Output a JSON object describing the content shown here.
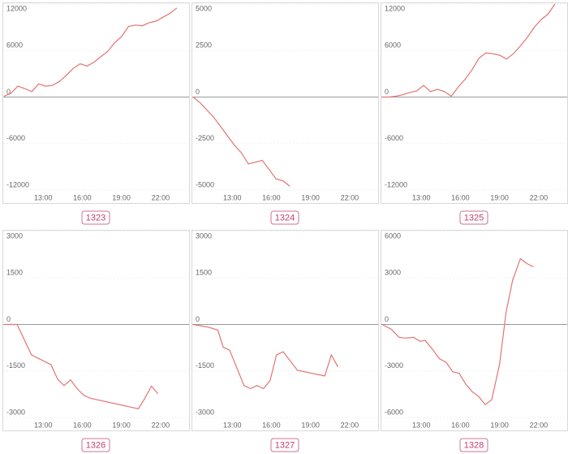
{
  "chart_data": [
    {
      "type": "line",
      "title": "1323",
      "color": "#e57373",
      "x": [
        10,
        10.53,
        11.06,
        11.59,
        12.12,
        12.65,
        13.18,
        13.71,
        14.24,
        14.77,
        15.3,
        15.83,
        16.36,
        16.89,
        17.42,
        17.95,
        18.48,
        19.01,
        19.54,
        20.07,
        20.6,
        21.13,
        21.66,
        22.19,
        22.72,
        23.25
      ],
      "values": [
        100,
        500,
        1400,
        1100,
        700,
        1700,
        1400,
        1500,
        2000,
        2800,
        3700,
        4300,
        4000,
        4500,
        5200,
        5900,
        7000,
        7800,
        9100,
        9300,
        9200,
        9600,
        9800,
        10300,
        10800,
        11500
      ],
      "xlim": [
        10,
        24.25
      ],
      "xticks": [
        {
          "value": 13,
          "label": "13:00"
        },
        {
          "value": 16,
          "label": "16:00"
        },
        {
          "value": 19,
          "label": "19:00"
        },
        {
          "value": 22,
          "label": "22:00"
        }
      ],
      "ylim": [
        -12000,
        12000
      ],
      "yticks": [
        12000,
        6000,
        0,
        -6000,
        -12000
      ]
    },
    {
      "type": "line",
      "title": "1324",
      "color": "#e57373",
      "x": [
        10,
        10.53,
        11.06,
        11.59,
        12.12,
        12.65,
        13.18,
        13.71,
        14.24,
        14.77,
        15.3,
        15.83,
        16.36,
        16.89,
        17.42
      ],
      "values": [
        0,
        -300,
        -700,
        -1100,
        -1600,
        -2100,
        -2600,
        -3000,
        -3600,
        -3500,
        -3400,
        -3900,
        -4400,
        -4500,
        -4800
      ],
      "xlim": [
        10,
        24.25
      ],
      "xticks": [
        {
          "value": 13,
          "label": "13:00"
        },
        {
          "value": 16,
          "label": "16:00"
        },
        {
          "value": 19,
          "label": "19:00"
        },
        {
          "value": 22,
          "label": "22:00"
        }
      ],
      "ylim": [
        -5000,
        5000
      ],
      "yticks": [
        5000,
        2500,
        0,
        -2500,
        -5000
      ]
    },
    {
      "type": "line",
      "title": "1325",
      "color": "#e57373",
      "x": [
        10,
        10.53,
        11.06,
        11.59,
        12.12,
        12.65,
        13.18,
        13.71,
        14.24,
        14.77,
        15.3,
        15.83,
        16.36,
        16.89,
        17.42,
        17.95,
        18.48,
        19.01,
        19.54,
        20.07,
        20.6,
        21.13,
        21.66,
        22.19,
        22.72,
        23.25
      ],
      "values": [
        0,
        0,
        100,
        300,
        600,
        800,
        1500,
        700,
        1000,
        700,
        100,
        1300,
        2300,
        3500,
        5000,
        5700,
        5600,
        5400,
        4900,
        5600,
        6600,
        7700,
        9000,
        10000,
        10700,
        12000
      ],
      "xlim": [
        10,
        24.25
      ],
      "xticks": [
        {
          "value": 13,
          "label": "13:00"
        },
        {
          "value": 16,
          "label": "16:00"
        },
        {
          "value": 19,
          "label": "19:00"
        },
        {
          "value": 22,
          "label": "22:00"
        }
      ],
      "ylim": [
        -12000,
        12000
      ],
      "yticks": [
        12000,
        6000,
        0,
        -6000,
        -12000
      ]
    },
    {
      "type": "line",
      "title": "1326",
      "color": "#e57373",
      "x": [
        10,
        11,
        12.1,
        13.6,
        14.1,
        14.6,
        15.1,
        15.6,
        16.1,
        16.6,
        20.3,
        20.8,
        21.3,
        21.8
      ],
      "values": [
        0,
        0,
        -980,
        -1300,
        -1760,
        -1970,
        -1790,
        -2070,
        -2280,
        -2380,
        -2720,
        -2380,
        -1990,
        -2230
      ],
      "xlim": [
        10,
        24.25
      ],
      "xticks": [
        {
          "value": 13,
          "label": "13:00"
        },
        {
          "value": 16,
          "label": "16:00"
        },
        {
          "value": 19,
          "label": "19:00"
        },
        {
          "value": 22,
          "label": "22:00"
        }
      ],
      "ylim": [
        -3000,
        3000
      ],
      "yticks": [
        3000,
        1500,
        0,
        -1500,
        -3000
      ]
    },
    {
      "type": "line",
      "title": "1327",
      "color": "#e57373",
      "x": [
        10,
        11.1,
        11.9,
        12.3,
        12.8,
        13.9,
        14.4,
        14.9,
        15.4,
        15.9,
        16.4,
        16.9,
        18.0,
        20.1,
        20.6,
        21.1
      ],
      "values": [
        0,
        -80,
        -180,
        -730,
        -830,
        -1970,
        -2070,
        -1970,
        -2070,
        -1810,
        -980,
        -880,
        -1480,
        -1660,
        -980,
        -1370
      ],
      "xlim": [
        10,
        24.25
      ],
      "xticks": [
        {
          "value": 13,
          "label": "13:00"
        },
        {
          "value": 16,
          "label": "16:00"
        },
        {
          "value": 19,
          "label": "19:00"
        },
        {
          "value": 22,
          "label": "22:00"
        }
      ],
      "ylim": [
        -3000,
        3000
      ],
      "yticks": [
        3000,
        1500,
        0,
        -1500,
        -3000
      ]
    },
    {
      "type": "line",
      "title": "1328",
      "color": "#e57373",
      "x": [
        10,
        10.7,
        11.3,
        11.8,
        12.4,
        12.9,
        13.3,
        13.9,
        14.4,
        14.9,
        15.4,
        15.9,
        16.4,
        16.9,
        17.4,
        17.9,
        18.4,
        19.0,
        19.5,
        20.0,
        20.6,
        21.1,
        21.6
      ],
      "values": [
        0,
        -310,
        -830,
        -880,
        -830,
        -1090,
        -1030,
        -1650,
        -2220,
        -2430,
        -3050,
        -3150,
        -3830,
        -4340,
        -4650,
        -5170,
        -4860,
        -2590,
        780,
        2840,
        4240,
        3930,
        3720
      ],
      "xlim": [
        10,
        24.25
      ],
      "xticks": [
        {
          "value": 13,
          "label": "13:00"
        },
        {
          "value": 16,
          "label": "16:00"
        },
        {
          "value": 19,
          "label": "19:00"
        },
        {
          "value": 22,
          "label": "22:00"
        }
      ],
      "ylim": [
        -6000,
        6000
      ],
      "yticks": [
        6000,
        3000,
        0,
        -3000,
        -6000
      ]
    }
  ]
}
